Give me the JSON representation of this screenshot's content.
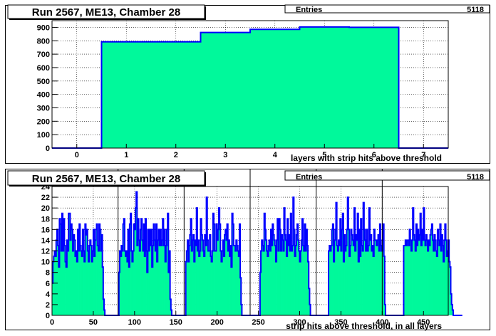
{
  "colors": {
    "fill": "#00f99b",
    "line": "#0000ff",
    "frame_bg": "#ffffff",
    "frame_border": "#000000",
    "grid": "#000000"
  },
  "chart_data": [
    {
      "type": "bar",
      "title": "Run 2567, ME13, Chamber 28",
      "stats": {
        "label": "Entries",
        "value": "5118"
      },
      "xlabel": "layers with strip hits above threshold",
      "ylabel": "",
      "xlim": [
        -0.5,
        7.5
      ],
      "ylim": [
        0,
        950
      ],
      "xticks": [
        0,
        1,
        2,
        3,
        4,
        5,
        6,
        7
      ],
      "yticks": [
        0,
        100,
        200,
        300,
        400,
        500,
        600,
        700,
        800,
        900
      ],
      "bins": [
        {
          "center": 0,
          "value": 0
        },
        {
          "center": 1,
          "value": 792
        },
        {
          "center": 2,
          "value": 792
        },
        {
          "center": 3,
          "value": 862
        },
        {
          "center": 4,
          "value": 885
        },
        {
          "center": 5,
          "value": 903
        },
        {
          "center": 6,
          "value": 900
        },
        {
          "center": 7,
          "value": 0
        }
      ],
      "grid": true,
      "legend": "none"
    },
    {
      "type": "bar",
      "title": "Run 2567, ME13, Chamber 28",
      "stats": {
        "label": "Entries",
        "value": "5118"
      },
      "xlabel": "strip hits above threshold, in all layers",
      "ylabel": "",
      "xlim": [
        0,
        480
      ],
      "ylim": [
        0,
        24
      ],
      "xticks": [
        0,
        50,
        100,
        150,
        200,
        250,
        300,
        350,
        400,
        450
      ],
      "yticks": [
        0,
        2,
        4,
        6,
        8,
        10,
        12,
        14,
        16,
        18,
        20,
        22,
        24
      ],
      "separators": [
        80,
        160,
        240,
        320,
        400
      ],
      "bin_width": 1,
      "x_start": 0,
      "values": [
        6,
        10,
        11,
        12,
        11,
        14,
        16,
        13,
        9,
        18,
        17,
        12,
        19,
        12,
        18,
        13,
        10,
        9,
        14,
        12,
        19,
        19,
        14,
        17,
        16,
        12,
        15,
        14,
        11,
        12,
        10,
        16,
        12,
        17,
        13,
        12,
        11,
        16,
        12,
        10,
        17,
        15,
        16,
        12,
        10,
        13,
        14,
        13,
        10,
        12,
        16,
        11,
        14,
        16,
        17,
        13,
        12,
        17,
        16,
        12,
        15,
        9,
        3,
        1,
        0,
        0,
        0,
        0,
        0,
        0,
        0,
        0,
        0,
        0,
        0,
        0,
        0,
        0,
        0,
        0,
        0,
        8,
        12,
        11,
        13,
        12,
        17,
        18,
        12,
        11,
        12,
        10,
        16,
        9,
        17,
        19,
        12,
        10,
        12,
        17,
        16,
        20,
        23,
        13,
        18,
        14,
        12,
        16,
        18,
        14,
        12,
        17,
        11,
        18,
        12,
        8,
        16,
        12,
        16,
        13,
        16,
        9,
        13,
        17,
        14,
        12,
        17,
        10,
        14,
        16,
        13,
        16,
        13,
        14,
        18,
        13,
        16,
        10,
        13,
        16,
        19,
        8,
        12,
        3,
        1,
        0,
        0,
        0,
        0,
        0,
        0,
        0,
        0,
        0,
        0,
        0,
        0,
        0,
        0,
        0,
        0,
        0,
        10,
        12,
        14,
        10,
        13,
        15,
        18,
        12,
        14,
        15,
        10,
        14,
        13,
        20,
        12,
        14,
        11,
        12,
        18,
        15,
        14,
        12,
        11,
        15,
        13,
        22,
        14,
        12,
        12,
        15,
        11,
        10,
        12,
        19,
        17,
        12,
        12,
        17,
        14,
        16,
        20,
        17,
        12,
        10,
        12,
        14,
        11,
        15,
        16,
        14,
        17,
        12,
        14,
        11,
        13,
        9,
        19,
        17,
        13,
        13,
        12,
        14,
        13,
        12,
        11,
        17,
        7,
        2,
        0,
        0,
        0,
        0,
        0,
        0,
        0,
        0,
        0,
        0,
        0,
        0,
        0,
        0,
        0,
        0,
        0,
        0,
        0,
        0,
        0,
        0,
        8,
        12,
        14,
        13,
        12,
        19,
        16,
        14,
        12,
        11,
        13,
        14,
        12,
        16,
        13,
        17,
        15,
        14,
        13,
        10,
        14,
        18,
        12,
        18,
        16,
        12,
        15,
        14,
        12,
        20,
        15,
        14,
        11,
        18,
        13,
        15,
        12,
        19,
        12,
        13,
        22,
        16,
        11,
        13,
        15,
        17,
        14,
        12,
        10,
        12,
        14,
        18,
        13,
        12,
        17,
        12,
        16,
        13,
        10,
        5,
        2,
        0,
        0,
        0,
        0,
        0,
        0,
        0,
        0,
        0,
        0,
        0,
        0,
        0,
        0,
        0,
        0,
        0,
        0,
        0,
        0,
        0,
        0,
        12,
        13,
        12,
        13,
        16,
        17,
        10,
        14,
        16,
        21,
        13,
        12,
        14,
        13,
        18,
        12,
        16,
        19,
        10,
        15,
        12,
        13,
        16,
        22,
        16,
        11,
        13,
        16,
        15,
        14,
        13,
        20,
        12,
        15,
        14,
        19,
        10,
        16,
        11,
        18,
        13,
        12,
        21,
        16,
        14,
        12,
        16,
        12,
        13,
        20,
        14,
        15,
        12,
        13,
        11,
        16,
        14,
        14,
        13,
        14,
        15,
        12,
        17,
        13,
        12,
        14,
        17,
        11,
        2,
        0,
        0,
        0,
        0,
        0,
        0,
        0,
        0,
        0,
        0,
        0,
        0,
        0,
        0,
        0,
        0,
        0,
        0,
        0,
        0,
        0,
        0,
        13,
        13,
        14,
        13,
        14,
        14,
        13,
        16,
        14,
        12,
        14,
        20,
        15,
        14,
        12,
        17,
        13,
        16,
        14,
        15,
        19,
        13,
        16,
        14,
        20,
        14,
        13,
        15,
        14,
        12,
        14,
        13,
        15,
        16,
        17,
        14,
        12,
        15,
        14,
        12,
        11,
        16,
        14,
        13,
        17,
        12,
        15,
        13,
        10,
        14,
        17,
        14,
        11,
        12,
        14,
        10,
        9,
        4,
        2,
        1,
        0,
        0,
        0,
        0,
        0,
        0,
        0,
        0,
        0,
        0,
        0
      ],
      "grid": true,
      "legend": "none"
    }
  ]
}
